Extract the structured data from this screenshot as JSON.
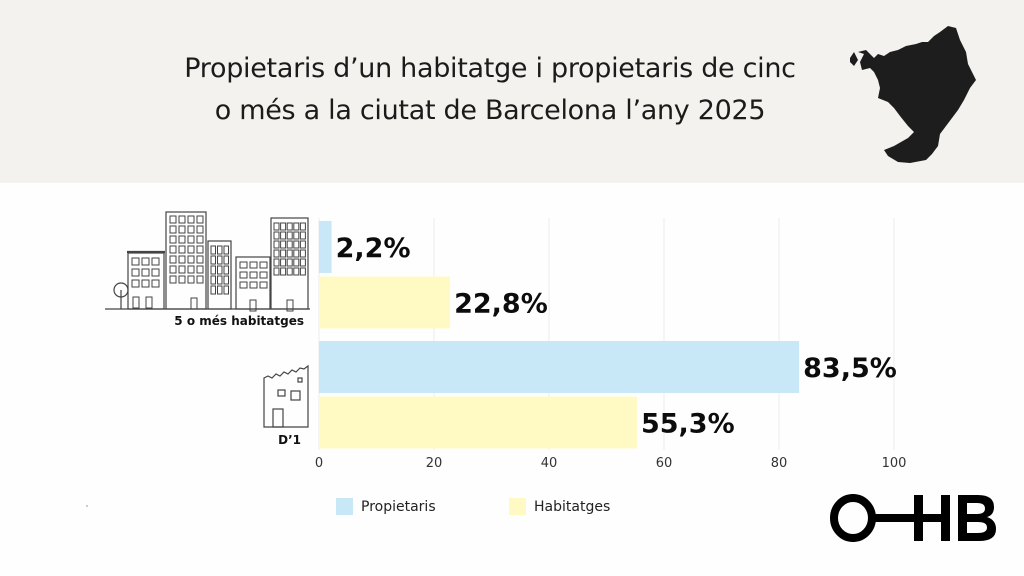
{
  "header": {
    "title_line1": "Propietaris d’un habitatge i propietaris de cinc",
    "title_line2": "o més a la ciutat de Barcelona l’any 2025",
    "map_icon": "barcelona-map-silhouette"
  },
  "colors": {
    "header_bg": "#f3f2ee",
    "propietaris": "#c8e8f8",
    "habitatges": "#fff9c4",
    "text": "#111111"
  },
  "chart_data": {
    "type": "bar",
    "orientation": "horizontal",
    "title": "Propietaris d’un habitatge i propietaris de cinc o més a la ciutat de Barcelona l’any 2025",
    "categories": [
      "5 o més habitatges",
      "D’1"
    ],
    "series": [
      {
        "name": "Propietaris",
        "values": [
          2.2,
          83.5
        ],
        "labels": [
          "2,2%",
          "83,5%"
        ]
      },
      {
        "name": "Habitatges",
        "values": [
          22.8,
          55.3
        ],
        "labels": [
          "22,8%",
          "55,3%"
        ]
      }
    ],
    "xlim": [
      0,
      100
    ],
    "xticks": [
      0,
      20,
      40,
      60,
      80,
      100
    ],
    "xlabel": "",
    "ylabel": "",
    "grid": true,
    "legend": "bottom"
  },
  "legend": {
    "items": [
      {
        "label": "Propietaris"
      },
      {
        "label": "Habitatges"
      }
    ]
  },
  "logo": {
    "text": "O—HB"
  }
}
